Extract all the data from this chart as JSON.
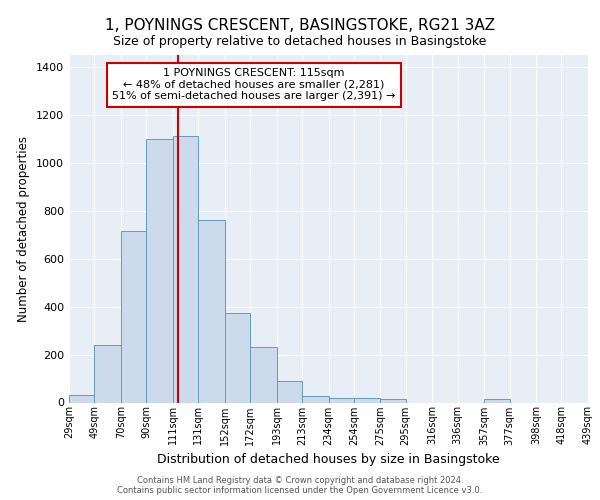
{
  "title_line1": "1, POYNINGS CRESCENT, BASINGSTOKE, RG21 3AZ",
  "title_line2": "Size of property relative to detached houses in Basingstoke",
  "xlabel": "Distribution of detached houses by size in Basingstoke",
  "ylabel": "Number of detached properties",
  "footer_line1": "Contains HM Land Registry data © Crown copyright and database right 2024.",
  "footer_line2": "Contains public sector information licensed under the Open Government Licence v3.0.",
  "annotation_line1": "1 POYNINGS CRESCENT: 115sqm",
  "annotation_line2": "← 48% of detached houses are smaller (2,281)",
  "annotation_line3": "51% of semi-detached houses are larger (2,391) →",
  "bar_color": "#ccdaeb",
  "bar_edge_color": "#6699bb",
  "vline_color": "#cc0000",
  "annotation_box_edge": "#cc0000",
  "background_color": "#e8eef5",
  "bin_edges": [
    29,
    49,
    70,
    90,
    111,
    131,
    152,
    172,
    193,
    213,
    234,
    254,
    275,
    295,
    316,
    336,
    357,
    377,
    398,
    418,
    439
  ],
  "bar_heights": [
    30,
    240,
    715,
    1100,
    1110,
    760,
    375,
    230,
    90,
    28,
    20,
    20,
    15,
    0,
    0,
    0,
    15,
    0,
    0,
    0
  ],
  "vline_x": 115,
  "ylim": [
    0,
    1450
  ],
  "yticks": [
    0,
    200,
    400,
    600,
    800,
    1000,
    1200,
    1400
  ]
}
